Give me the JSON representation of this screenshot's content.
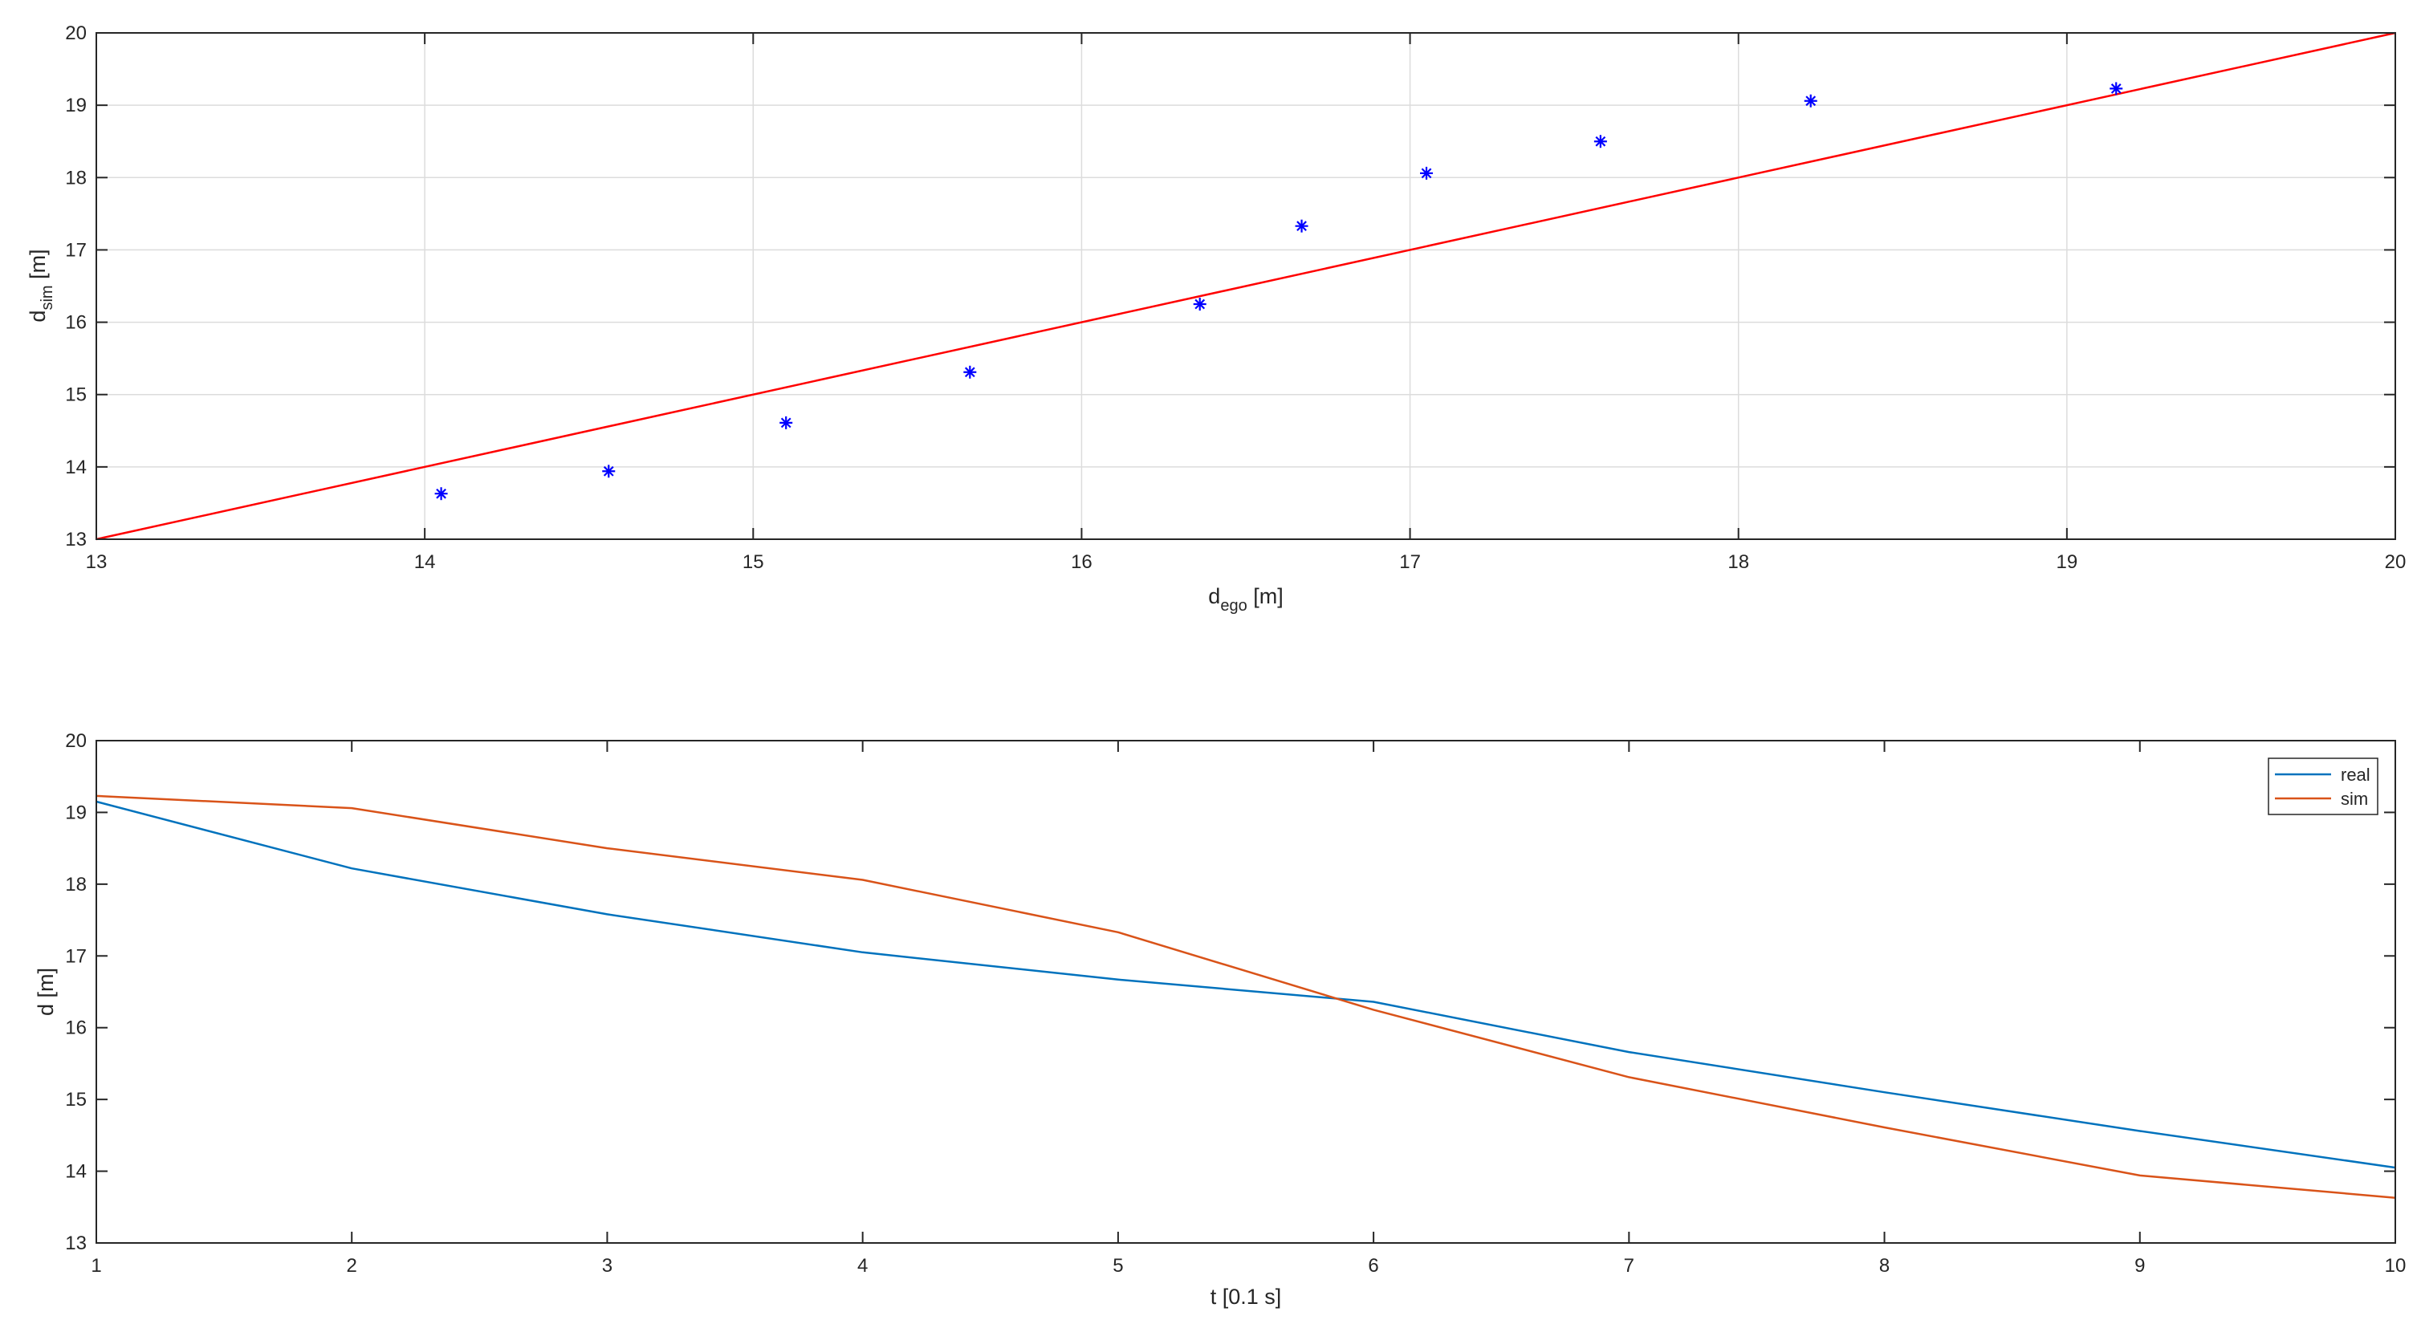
{
  "chart_data": [
    {
      "type": "scatter",
      "xlabel": {
        "base": "d",
        "sub": "ego",
        "unit": " [m]"
      },
      "ylabel": {
        "base": "d",
        "sub": "sim",
        "unit": " [m]"
      },
      "xlim": [
        13,
        20
      ],
      "ylim": [
        13,
        20
      ],
      "xticks": [
        13,
        14,
        15,
        16,
        17,
        18,
        19,
        20
      ],
      "yticks": [
        13,
        14,
        15,
        16,
        17,
        18,
        19,
        20
      ],
      "grid": true,
      "points": [
        {
          "x": 14.05,
          "y": 13.63
        },
        {
          "x": 14.56,
          "y": 13.94
        },
        {
          "x": 15.1,
          "y": 14.61
        },
        {
          "x": 15.66,
          "y": 15.31
        },
        {
          "x": 16.36,
          "y": 16.25
        },
        {
          "x": 16.67,
          "y": 17.33
        },
        {
          "x": 17.05,
          "y": 18.06
        },
        {
          "x": 17.58,
          "y": 18.5
        },
        {
          "x": 18.22,
          "y": 19.06
        },
        {
          "x": 19.15,
          "y": 19.23
        }
      ],
      "reference_line": {
        "x": [
          13,
          20
        ],
        "y": [
          13,
          20
        ]
      },
      "colors": {
        "points": "#0000ff",
        "reference_line": "#ff0000",
        "grid": "#dcdcdc"
      }
    },
    {
      "type": "line",
      "xlabel": "t [0.1 s]",
      "ylabel": "d [m]",
      "xlim": [
        1,
        10
      ],
      "ylim": [
        13,
        20
      ],
      "xticks": [
        1,
        2,
        3,
        4,
        5,
        6,
        7,
        8,
        9,
        10
      ],
      "yticks": [
        13,
        14,
        15,
        16,
        17,
        18,
        19,
        20
      ],
      "grid": false,
      "legend_position": "top-right",
      "x": [
        1,
        2,
        3,
        4,
        5,
        6,
        7,
        8,
        9,
        10
      ],
      "series": [
        {
          "name": "real",
          "color": "#0072bd",
          "values": [
            19.15,
            18.22,
            17.58,
            17.05,
            16.67,
            16.36,
            15.66,
            15.1,
            14.56,
            14.05
          ]
        },
        {
          "name": "sim",
          "color": "#d95319",
          "values": [
            19.23,
            19.06,
            18.5,
            18.06,
            17.33,
            16.25,
            15.31,
            14.61,
            13.94,
            13.63
          ]
        }
      ]
    }
  ]
}
